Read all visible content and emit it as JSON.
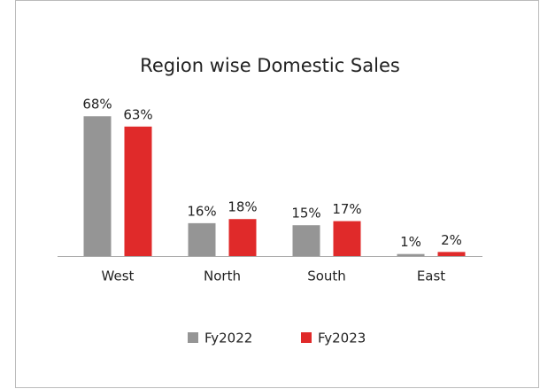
{
  "chart_data": {
    "type": "bar",
    "title": "Region wise Domestic Sales",
    "categories": [
      "West",
      "North",
      "South",
      "East"
    ],
    "series": [
      {
        "name": "Fy2022",
        "color": "#959595",
        "values": [
          68,
          16,
          15,
          1
        ],
        "value_labels": [
          "68%",
          "16%",
          "15%",
          "1%"
        ]
      },
      {
        "name": "Fy2023",
        "color": "#e02a2a",
        "values": [
          63,
          18,
          17,
          2
        ],
        "value_labels": [
          "63%",
          "18%",
          "17%",
          "2%"
        ]
      }
    ]
  }
}
